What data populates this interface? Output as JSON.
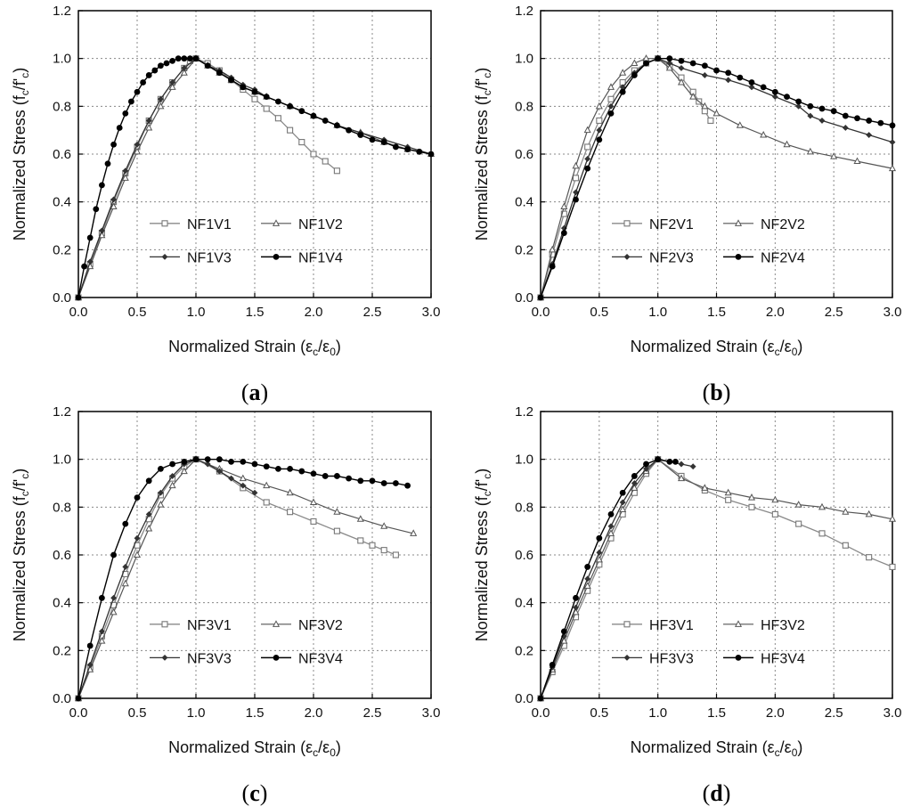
{
  "figure": {
    "panels": [
      "(a)",
      "(b)",
      "(c)",
      "(d)"
    ]
  },
  "axis_text": {
    "xlabel": "Normalized Strain (εc/ε0)",
    "ylabel": "Normalized Stress (fc/f'c)"
  },
  "chart_data": [
    {
      "type": "line",
      "panel_label": "(a)",
      "xlabel": "Normalized Strain (εc/ε0)",
      "ylabel": "Normalized Stress (fc/f'c)",
      "xlim": [
        0.0,
        3.0
      ],
      "ylim": [
        0.0,
        1.2
      ],
      "xticks": [
        "0.0",
        "0.5",
        "1.0",
        "1.5",
        "2.0",
        "2.5",
        "3.0"
      ],
      "yticks": [
        "0.0",
        "0.2",
        "0.4",
        "0.6",
        "0.8",
        "1.0",
        "1.2"
      ],
      "grid": true,
      "legend_position": "lower-center",
      "series": [
        {
          "name": "NF1V1",
          "marker": "open-square",
          "x": [
            0,
            0.1,
            0.2,
            0.3,
            0.4,
            0.5,
            0.6,
            0.7,
            0.8,
            0.9,
            0.95,
            1.0,
            1.1,
            1.2,
            1.3,
            1.4,
            1.5,
            1.6,
            1.7,
            1.8,
            1.9,
            2.0,
            2.1,
            2.2
          ],
          "y": [
            0,
            0.14,
            0.27,
            0.4,
            0.52,
            0.63,
            0.74,
            0.83,
            0.9,
            0.96,
            0.99,
            1.0,
            0.98,
            0.95,
            0.91,
            0.87,
            0.83,
            0.79,
            0.75,
            0.7,
            0.65,
            0.6,
            0.57,
            0.53
          ]
        },
        {
          "name": "NF1V2",
          "marker": "open-triangle",
          "x": [
            0,
            0.1,
            0.2,
            0.3,
            0.4,
            0.5,
            0.6,
            0.7,
            0.8,
            0.9,
            1.0,
            1.1,
            1.2,
            1.3,
            1.4,
            1.5,
            1.6,
            1.8,
            2.0,
            2.2,
            2.4,
            2.6,
            2.8,
            3.0
          ],
          "y": [
            0,
            0.13,
            0.26,
            0.38,
            0.5,
            0.61,
            0.71,
            0.8,
            0.88,
            0.94,
            1.0,
            0.97,
            0.94,
            0.91,
            0.88,
            0.86,
            0.84,
            0.8,
            0.76,
            0.72,
            0.69,
            0.65,
            0.62,
            0.6
          ]
        },
        {
          "name": "NF1V3",
          "marker": "small-diamond",
          "x": [
            0,
            0.1,
            0.2,
            0.3,
            0.4,
            0.5,
            0.6,
            0.7,
            0.8,
            0.9,
            1.0,
            1.1,
            1.2,
            1.3,
            1.4,
            1.5,
            1.6,
            1.8,
            2.0,
            2.2,
            2.4,
            2.6,
            2.8,
            3.0
          ],
          "y": [
            0,
            0.15,
            0.28,
            0.41,
            0.53,
            0.64,
            0.74,
            0.83,
            0.9,
            0.96,
            1.0,
            0.97,
            0.95,
            0.92,
            0.89,
            0.87,
            0.84,
            0.8,
            0.76,
            0.72,
            0.69,
            0.66,
            0.63,
            0.6
          ]
        },
        {
          "name": "NF1V4",
          "marker": "filled-circle",
          "x": [
            0,
            0.05,
            0.1,
            0.15,
            0.2,
            0.25,
            0.3,
            0.35,
            0.4,
            0.45,
            0.5,
            0.55,
            0.6,
            0.65,
            0.7,
            0.75,
            0.8,
            0.85,
            0.9,
            0.95,
            1.0,
            1.1,
            1.2,
            1.3,
            1.4,
            1.5,
            1.6,
            1.7,
            1.8,
            1.9,
            2.0,
            2.1,
            2.2,
            2.3,
            2.4,
            2.5,
            2.6,
            2.7,
            2.8,
            2.9,
            3.0
          ],
          "y": [
            0,
            0.13,
            0.25,
            0.37,
            0.47,
            0.56,
            0.64,
            0.71,
            0.77,
            0.82,
            0.86,
            0.9,
            0.93,
            0.95,
            0.97,
            0.98,
            0.99,
            1.0,
            1.0,
            1.0,
            1.0,
            0.97,
            0.94,
            0.91,
            0.88,
            0.86,
            0.84,
            0.82,
            0.8,
            0.78,
            0.76,
            0.74,
            0.72,
            0.7,
            0.68,
            0.66,
            0.65,
            0.63,
            0.62,
            0.61,
            0.6
          ]
        }
      ]
    },
    {
      "type": "line",
      "panel_label": "(b)",
      "xlabel": "Normalized Strain (εc/ε0)",
      "ylabel": "Normalized Stress (fc/f'c)",
      "xlim": [
        0.0,
        3.0
      ],
      "ylim": [
        0.0,
        1.2
      ],
      "xticks": [
        "0.0",
        "0.5",
        "1.0",
        "1.5",
        "2.0",
        "2.5",
        "3.0"
      ],
      "yticks": [
        "0.0",
        "0.2",
        "0.4",
        "0.6",
        "0.8",
        "1.0",
        "1.2"
      ],
      "grid": true,
      "legend_position": "lower-center",
      "series": [
        {
          "name": "NF2V1",
          "marker": "open-square",
          "x": [
            0,
            0.1,
            0.2,
            0.3,
            0.4,
            0.5,
            0.6,
            0.7,
            0.8,
            0.9,
            1.0,
            1.1,
            1.2,
            1.3,
            1.35,
            1.4,
            1.45
          ],
          "y": [
            0,
            0.18,
            0.35,
            0.5,
            0.63,
            0.74,
            0.83,
            0.9,
            0.95,
            0.98,
            1.0,
            0.97,
            0.92,
            0.86,
            0.82,
            0.78,
            0.74
          ]
        },
        {
          "name": "NF2V2",
          "marker": "open-triangle",
          "x": [
            0,
            0.1,
            0.2,
            0.3,
            0.4,
            0.5,
            0.6,
            0.7,
            0.8,
            0.9,
            1.0,
            1.1,
            1.2,
            1.3,
            1.4,
            1.5,
            1.7,
            1.9,
            2.1,
            2.3,
            2.5,
            2.7,
            3.0
          ],
          "y": [
            0,
            0.2,
            0.38,
            0.55,
            0.7,
            0.8,
            0.88,
            0.94,
            0.98,
            1.0,
            1.0,
            0.96,
            0.9,
            0.84,
            0.8,
            0.77,
            0.72,
            0.68,
            0.64,
            0.61,
            0.59,
            0.57,
            0.54
          ]
        },
        {
          "name": "NF2V3",
          "marker": "small-diamond",
          "x": [
            0,
            0.1,
            0.2,
            0.3,
            0.4,
            0.5,
            0.6,
            0.7,
            0.8,
            0.9,
            1.0,
            1.1,
            1.2,
            1.4,
            1.6,
            1.8,
            2.0,
            2.2,
            2.3,
            2.4,
            2.6,
            2.8,
            3.0
          ],
          "y": [
            0,
            0.14,
            0.29,
            0.44,
            0.58,
            0.7,
            0.8,
            0.88,
            0.94,
            0.98,
            1.0,
            0.98,
            0.96,
            0.93,
            0.91,
            0.88,
            0.84,
            0.8,
            0.76,
            0.74,
            0.71,
            0.68,
            0.65
          ]
        },
        {
          "name": "NF2V4",
          "marker": "filled-circle",
          "x": [
            0,
            0.1,
            0.2,
            0.3,
            0.4,
            0.5,
            0.6,
            0.7,
            0.8,
            0.9,
            1.0,
            1.1,
            1.2,
            1.3,
            1.4,
            1.5,
            1.6,
            1.7,
            1.8,
            1.9,
            2.0,
            2.1,
            2.2,
            2.3,
            2.4,
            2.5,
            2.6,
            2.7,
            2.8,
            2.9,
            3.0
          ],
          "y": [
            0,
            0.13,
            0.27,
            0.41,
            0.54,
            0.66,
            0.77,
            0.86,
            0.93,
            0.98,
            1.0,
            1.0,
            0.99,
            0.98,
            0.97,
            0.95,
            0.94,
            0.92,
            0.9,
            0.88,
            0.86,
            0.84,
            0.82,
            0.8,
            0.79,
            0.78,
            0.76,
            0.75,
            0.74,
            0.73,
            0.72
          ]
        }
      ]
    },
    {
      "type": "line",
      "panel_label": "(c)",
      "xlabel": "Normalized Strain (εc/ε0)",
      "ylabel": "Normalized Stress (fc/f'c)",
      "xlim": [
        0.0,
        3.0
      ],
      "ylim": [
        0.0,
        1.2
      ],
      "xticks": [
        "0.0",
        "0.5",
        "1.0",
        "1.5",
        "2.0",
        "2.5",
        "3.0"
      ],
      "yticks": [
        "0.0",
        "0.2",
        "0.4",
        "0.6",
        "0.8",
        "1.0",
        "1.2"
      ],
      "grid": true,
      "legend_position": "lower-center",
      "series": [
        {
          "name": "NF3V1",
          "marker": "open-square",
          "x": [
            0,
            0.1,
            0.2,
            0.3,
            0.4,
            0.5,
            0.6,
            0.7,
            0.8,
            0.9,
            1.0,
            1.2,
            1.4,
            1.6,
            1.8,
            2.0,
            2.2,
            2.4,
            2.5,
            2.6,
            2.7
          ],
          "y": [
            0,
            0.13,
            0.26,
            0.39,
            0.52,
            0.64,
            0.75,
            0.85,
            0.92,
            0.97,
            1.0,
            0.95,
            0.88,
            0.82,
            0.78,
            0.74,
            0.7,
            0.66,
            0.64,
            0.62,
            0.6
          ]
        },
        {
          "name": "NF3V2",
          "marker": "open-triangle",
          "x": [
            0,
            0.1,
            0.2,
            0.3,
            0.4,
            0.5,
            0.6,
            0.7,
            0.8,
            0.9,
            1.0,
            1.2,
            1.4,
            1.6,
            1.8,
            2.0,
            2.2,
            2.4,
            2.6,
            2.85
          ],
          "y": [
            0,
            0.12,
            0.24,
            0.36,
            0.48,
            0.6,
            0.71,
            0.81,
            0.89,
            0.95,
            1.0,
            0.96,
            0.92,
            0.89,
            0.86,
            0.82,
            0.78,
            0.75,
            0.72,
            0.69
          ]
        },
        {
          "name": "NF3V3",
          "marker": "small-diamond",
          "x": [
            0,
            0.1,
            0.2,
            0.3,
            0.4,
            0.5,
            0.6,
            0.7,
            0.8,
            0.9,
            1.0,
            1.1,
            1.2,
            1.3,
            1.4,
            1.5
          ],
          "y": [
            0,
            0.14,
            0.28,
            0.42,
            0.55,
            0.67,
            0.77,
            0.86,
            0.93,
            0.98,
            1.0,
            0.98,
            0.95,
            0.92,
            0.89,
            0.86
          ]
        },
        {
          "name": "NF3V4",
          "marker": "filled-circle",
          "x": [
            0,
            0.1,
            0.2,
            0.3,
            0.4,
            0.5,
            0.6,
            0.7,
            0.8,
            0.9,
            1.0,
            1.1,
            1.2,
            1.3,
            1.4,
            1.5,
            1.6,
            1.7,
            1.8,
            1.9,
            2.0,
            2.1,
            2.2,
            2.3,
            2.4,
            2.5,
            2.6,
            2.7,
            2.8
          ],
          "y": [
            0,
            0.22,
            0.42,
            0.6,
            0.73,
            0.84,
            0.91,
            0.96,
            0.98,
            0.99,
            1.0,
            1.0,
            1.0,
            0.99,
            0.99,
            0.98,
            0.97,
            0.96,
            0.96,
            0.95,
            0.94,
            0.93,
            0.93,
            0.92,
            0.91,
            0.91,
            0.9,
            0.9,
            0.89
          ]
        }
      ]
    },
    {
      "type": "line",
      "panel_label": "(d)",
      "xlabel": "Normalized Strain (εc/ε0)",
      "ylabel": "Normalized Stress (fc/f'c)",
      "xlim": [
        0.0,
        3.0
      ],
      "ylim": [
        0.0,
        1.2
      ],
      "xticks": [
        "0.0",
        "0.5",
        "1.0",
        "1.5",
        "2.0",
        "2.5",
        "3.0"
      ],
      "yticks": [
        "0.0",
        "0.2",
        "0.4",
        "0.6",
        "0.8",
        "1.0",
        "1.2"
      ],
      "grid": true,
      "legend_position": "lower-center",
      "series": [
        {
          "name": "HF3V1",
          "marker": "open-square",
          "x": [
            0,
            0.1,
            0.2,
            0.3,
            0.4,
            0.5,
            0.6,
            0.7,
            0.8,
            0.9,
            1.0,
            1.2,
            1.4,
            1.6,
            1.8,
            2.0,
            2.2,
            2.4,
            2.6,
            2.8,
            3.0
          ],
          "y": [
            0,
            0.11,
            0.22,
            0.34,
            0.45,
            0.56,
            0.67,
            0.77,
            0.86,
            0.94,
            1.0,
            0.93,
            0.87,
            0.83,
            0.8,
            0.77,
            0.73,
            0.69,
            0.64,
            0.59,
            0.55
          ]
        },
        {
          "name": "HF3V2",
          "marker": "open-triangle",
          "x": [
            0,
            0.1,
            0.2,
            0.3,
            0.4,
            0.5,
            0.6,
            0.7,
            0.8,
            0.9,
            1.0,
            1.2,
            1.4,
            1.6,
            1.8,
            2.0,
            2.2,
            2.4,
            2.6,
            2.8,
            3.0
          ],
          "y": [
            0,
            0.12,
            0.24,
            0.36,
            0.47,
            0.58,
            0.69,
            0.79,
            0.88,
            0.95,
            1.0,
            0.92,
            0.88,
            0.86,
            0.84,
            0.83,
            0.81,
            0.8,
            0.78,
            0.77,
            0.75
          ]
        },
        {
          "name": "HF3V3",
          "marker": "small-diamond",
          "x": [
            0,
            0.1,
            0.2,
            0.3,
            0.4,
            0.5,
            0.6,
            0.7,
            0.8,
            0.9,
            1.0,
            1.1,
            1.2,
            1.3
          ],
          "y": [
            0,
            0.13,
            0.26,
            0.38,
            0.5,
            0.61,
            0.72,
            0.82,
            0.9,
            0.96,
            1.0,
            0.99,
            0.98,
            0.97
          ]
        },
        {
          "name": "HF3V4",
          "marker": "filled-circle",
          "x": [
            0,
            0.1,
            0.2,
            0.3,
            0.4,
            0.5,
            0.6,
            0.7,
            0.8,
            0.9,
            1.0,
            1.1,
            1.15
          ],
          "y": [
            0,
            0.14,
            0.28,
            0.42,
            0.55,
            0.67,
            0.77,
            0.86,
            0.93,
            0.98,
            1.0,
            0.99,
            0.99
          ]
        }
      ]
    }
  ]
}
